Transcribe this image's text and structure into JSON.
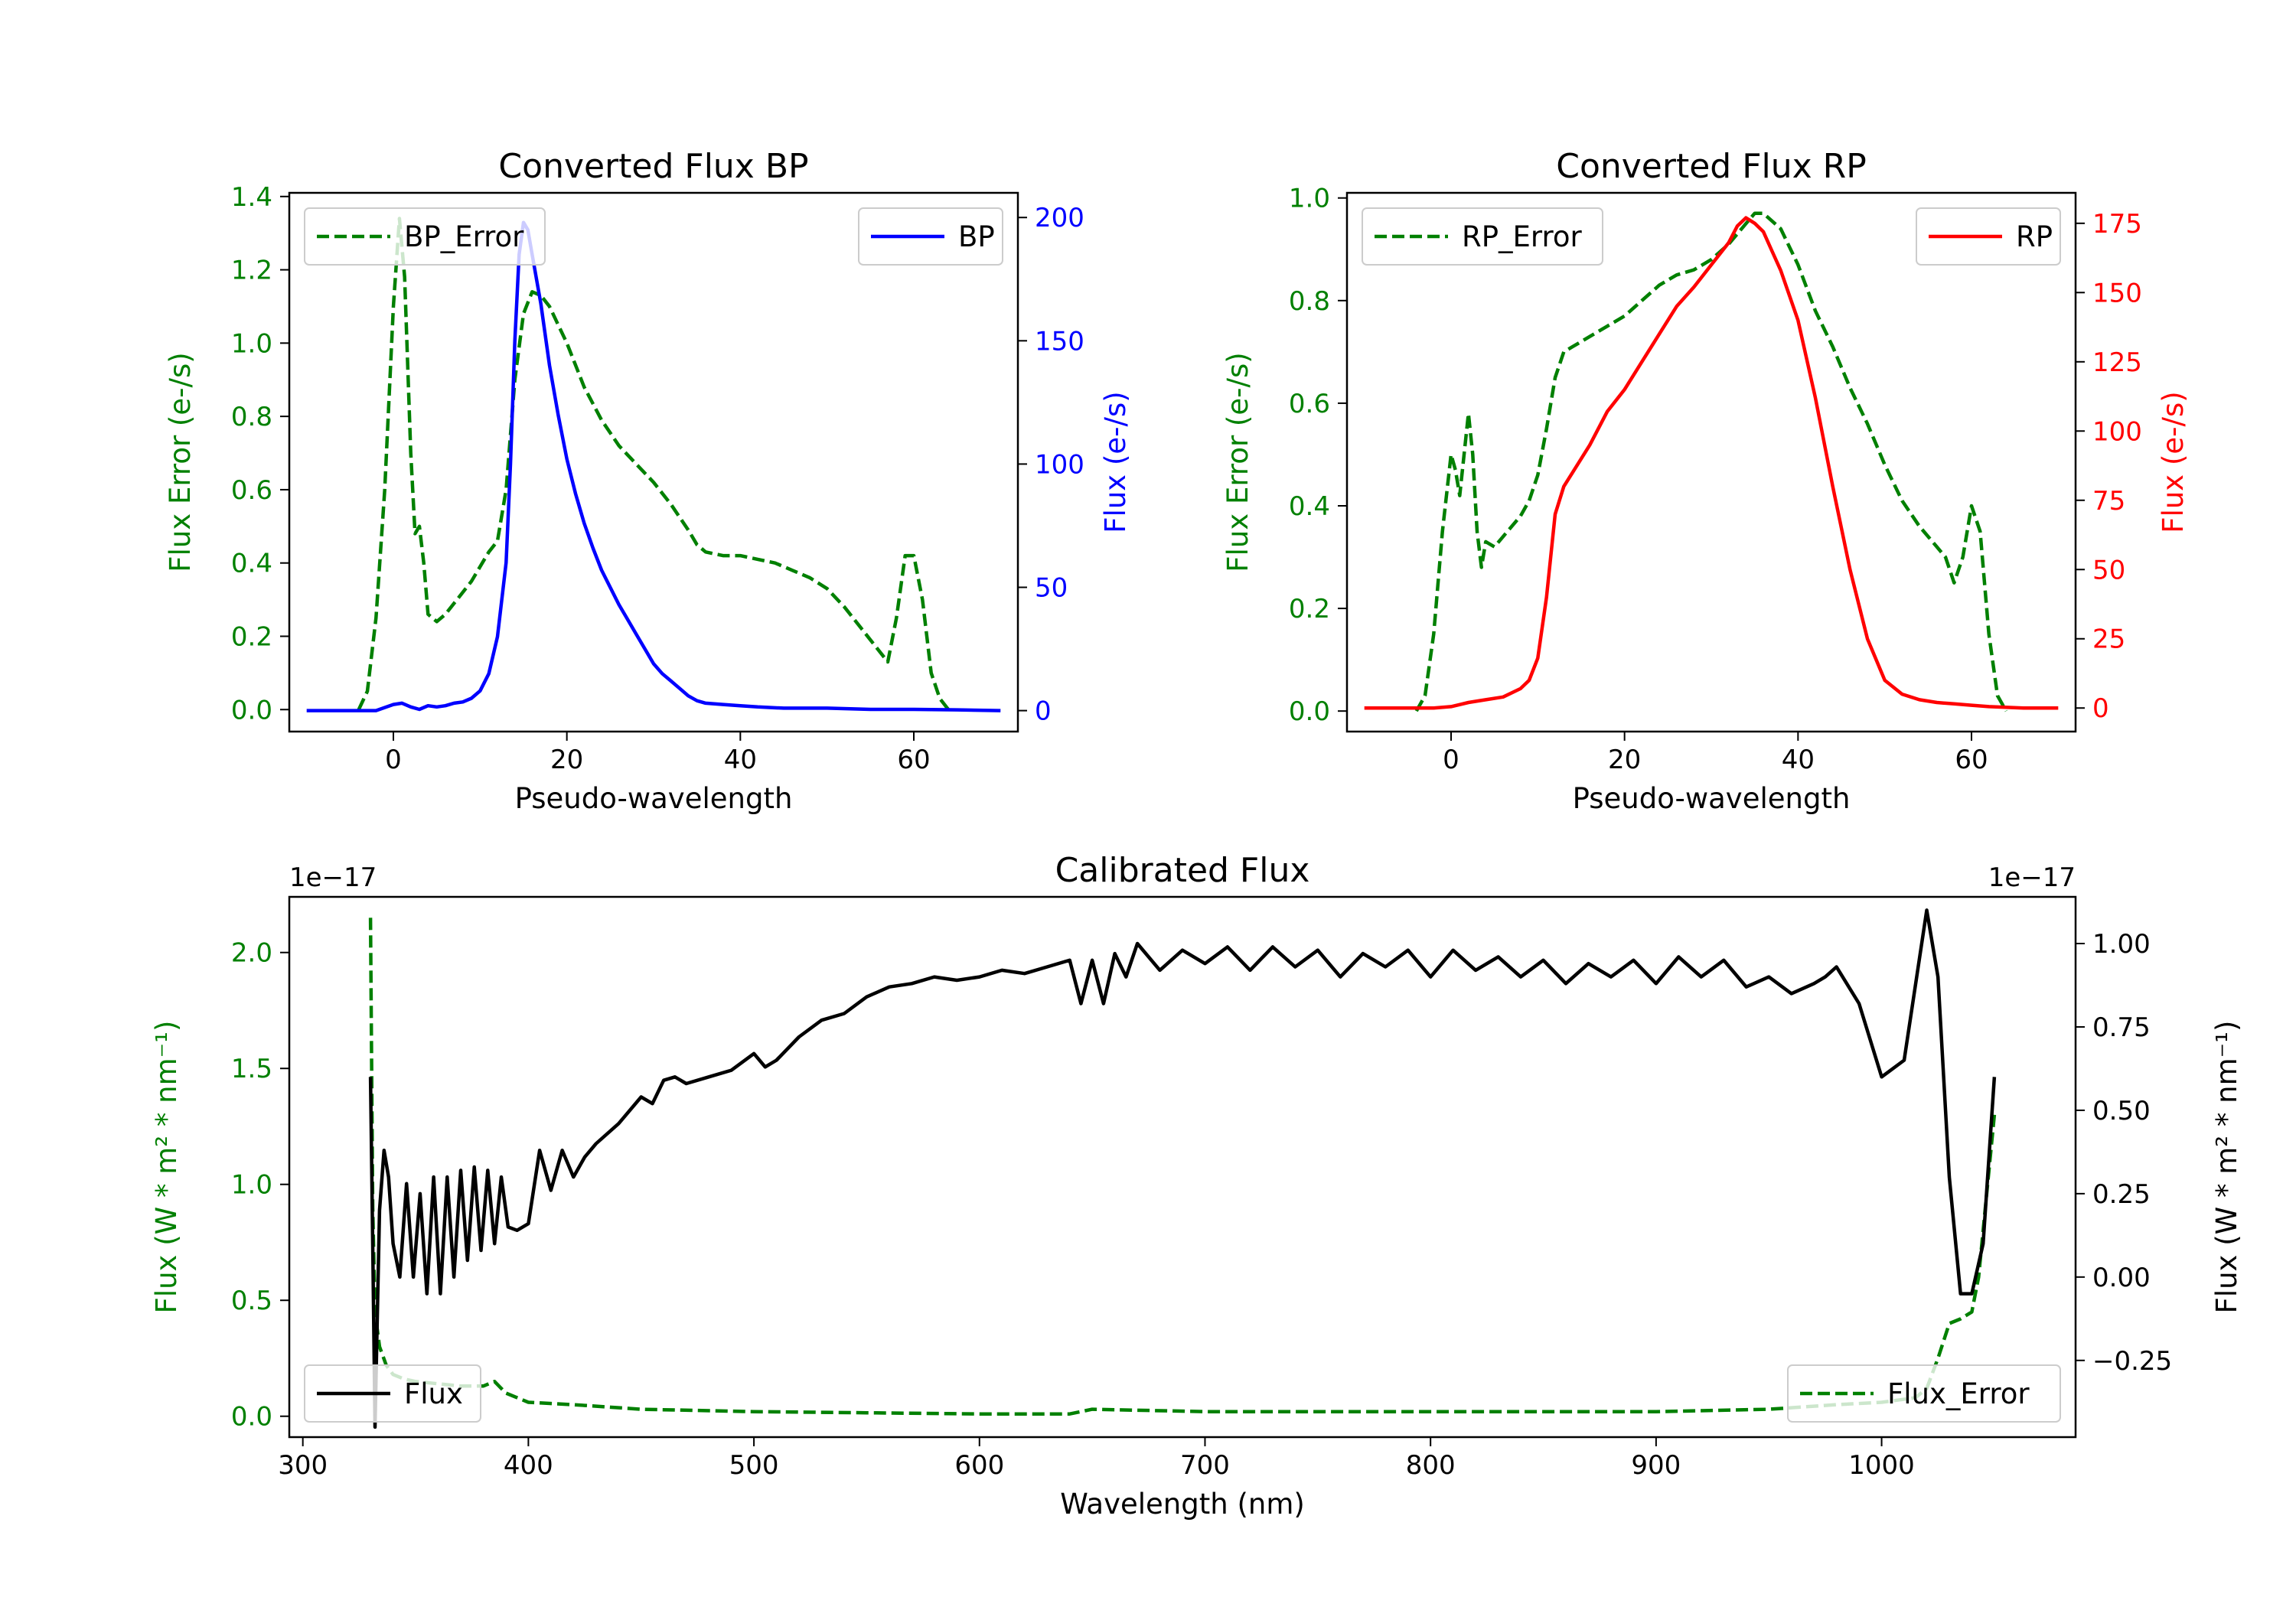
{
  "colors": {
    "green": "#008000",
    "blue": "#0000ff",
    "red": "#ff0000",
    "black": "#000000"
  },
  "chart_data": [
    {
      "type": "line",
      "id": "bp",
      "title": "Converted Flux BP",
      "xlabel": "Pseudo-wavelength",
      "ylabel_left": "Flux Error (e-/s)",
      "ylabel_right": "Flux (e-/s)",
      "xlim": [
        -12,
        72
      ],
      "ylim_left": [
        -0.06,
        1.41
      ],
      "ylim_right": [
        -8.5,
        210
      ],
      "xticks": [
        0,
        20,
        40,
        60
      ],
      "yticks_left": [
        0.0,
        0.2,
        0.4,
        0.6,
        0.8,
        1.0,
        1.2,
        1.4
      ],
      "yticks_right": [
        0,
        50,
        100,
        150,
        200
      ],
      "legend_left": "BP_Error",
      "legend_right": "BP",
      "series": [
        {
          "name": "BP_Error",
          "axis": "left",
          "color": "#008000",
          "dashed": true,
          "x": [
            -4,
            -3,
            -2,
            -1,
            0,
            0.7,
            1.3,
            2,
            2.5,
            3,
            3.5,
            4,
            5,
            6,
            7,
            8,
            9,
            10,
            11,
            12,
            13,
            14,
            15,
            16,
            17,
            18,
            19,
            20,
            21,
            22,
            24,
            26,
            28,
            30,
            32,
            34,
            35,
            36,
            38,
            40,
            42,
            44,
            46,
            48,
            50,
            52,
            54,
            56,
            57,
            58,
            59,
            60,
            61,
            62,
            63,
            64
          ],
          "values": [
            0.0,
            0.05,
            0.25,
            0.6,
            1.1,
            1.34,
            1.18,
            0.7,
            0.48,
            0.5,
            0.4,
            0.26,
            0.24,
            0.26,
            0.29,
            0.32,
            0.35,
            0.39,
            0.43,
            0.46,
            0.6,
            0.9,
            1.08,
            1.14,
            1.13,
            1.1,
            1.05,
            1.0,
            0.94,
            0.88,
            0.79,
            0.72,
            0.67,
            0.62,
            0.56,
            0.49,
            0.45,
            0.43,
            0.42,
            0.42,
            0.41,
            0.4,
            0.38,
            0.36,
            0.33,
            0.28,
            0.22,
            0.16,
            0.13,
            0.25,
            0.42,
            0.42,
            0.3,
            0.1,
            0.03,
            0.0
          ]
        },
        {
          "name": "BP",
          "axis": "right",
          "color": "#0000ff",
          "dashed": false,
          "x": [
            -10,
            -2,
            0,
            1,
            2,
            3,
            4,
            5,
            6,
            7,
            8,
            9,
            10,
            11,
            12,
            13,
            13.5,
            14,
            14.5,
            15,
            15.5,
            16,
            17,
            18,
            19,
            20,
            21,
            22,
            23,
            24,
            25,
            26,
            27,
            28,
            29,
            30,
            31,
            32,
            33,
            34,
            35,
            36,
            38,
            40,
            42,
            45,
            50,
            55,
            60,
            65,
            70
          ],
          "values": [
            0,
            0,
            2.5,
            3,
            1.5,
            0.5,
            2,
            1.5,
            2,
            3,
            3.5,
            5,
            8,
            15,
            30,
            60,
            100,
            150,
            185,
            198,
            195,
            185,
            165,
            140,
            120,
            102,
            88,
            76,
            66,
            57,
            50,
            43,
            37,
            31,
            25,
            19,
            15,
            12,
            9,
            6,
            4,
            3,
            2.5,
            2,
            1.5,
            1,
            1,
            0.5,
            0.5,
            0.3,
            0
          ]
        }
      ]
    },
    {
      "type": "line",
      "id": "rp",
      "title": "Converted Flux RP",
      "xlabel": "Pseudo-wavelength",
      "ylabel_left": "Flux Error (e-/s)",
      "ylabel_right": "Flux (e-/s)",
      "xlim": [
        -12,
        72
      ],
      "ylim_left": [
        -0.04,
        1.01
      ],
      "ylim_right": [
        -8.5,
        186
      ],
      "xticks": [
        0,
        20,
        40,
        60
      ],
      "yticks_left": [
        0.0,
        0.2,
        0.4,
        0.6,
        0.8,
        1.0
      ],
      "yticks_right": [
        0,
        25,
        50,
        75,
        100,
        125,
        150,
        175
      ],
      "legend_left": "RP_Error",
      "legend_right": "RP",
      "series": [
        {
          "name": "RP_Error",
          "axis": "left",
          "color": "#008000",
          "dashed": true,
          "x": [
            -4,
            -3,
            -2,
            -1,
            0,
            0.5,
            1,
            1.5,
            2,
            2.5,
            3,
            3.5,
            4,
            5,
            6,
            7,
            8,
            9,
            10,
            11,
            12,
            13,
            14,
            16,
            18,
            20,
            22,
            24,
            26,
            28,
            30,
            32,
            34,
            35,
            36,
            38,
            40,
            42,
            44,
            46,
            48,
            50,
            52,
            54,
            56,
            57,
            58,
            59,
            60,
            61,
            62,
            63,
            64
          ],
          "values": [
            0.0,
            0.03,
            0.15,
            0.35,
            0.5,
            0.47,
            0.42,
            0.5,
            0.58,
            0.5,
            0.35,
            0.28,
            0.33,
            0.32,
            0.34,
            0.36,
            0.38,
            0.41,
            0.46,
            0.55,
            0.65,
            0.7,
            0.71,
            0.73,
            0.75,
            0.77,
            0.8,
            0.83,
            0.85,
            0.86,
            0.88,
            0.91,
            0.95,
            0.97,
            0.97,
            0.94,
            0.87,
            0.78,
            0.71,
            0.63,
            0.56,
            0.48,
            0.41,
            0.36,
            0.32,
            0.3,
            0.25,
            0.3,
            0.4,
            0.35,
            0.15,
            0.03,
            0.0
          ]
        },
        {
          "name": "RP",
          "axis": "right",
          "color": "#ff0000",
          "dashed": false,
          "x": [
            -10,
            -2,
            0,
            2,
            4,
            6,
            8,
            9,
            10,
            11,
            12,
            13,
            14,
            16,
            18,
            20,
            22,
            24,
            26,
            28,
            30,
            32,
            33,
            34,
            35,
            36,
            37,
            38,
            40,
            42,
            44,
            46,
            48,
            50,
            52,
            54,
            56,
            58,
            60,
            62,
            66,
            70
          ],
          "values": [
            0,
            0,
            0.5,
            2,
            3,
            4,
            7,
            10,
            18,
            40,
            70,
            80,
            85,
            95,
            107,
            115,
            125,
            135,
            145,
            152,
            160,
            168,
            174,
            177,
            175,
            172,
            165,
            158,
            140,
            112,
            80,
            50,
            25,
            10,
            5,
            3,
            2,
            1.5,
            1,
            0.5,
            0,
            0
          ]
        }
      ]
    },
    {
      "type": "line",
      "id": "cal",
      "title": "Calibrated Flux",
      "xlabel": "Wavelength (nm)",
      "ylabel_left": "Flux (W * m² * nm⁻¹)",
      "ylabel_right": "Flux (W * m² * nm⁻¹)",
      "offset_left": "1e−17",
      "offset_right": "1e−17",
      "xlim": [
        294,
        1086
      ],
      "ylim_left": [
        -0.09,
        2.24
      ],
      "ylim_right": [
        -0.48,
        1.14
      ],
      "xticks": [
        300,
        400,
        500,
        600,
        700,
        800,
        900,
        1000
      ],
      "yticks_left": [
        0.0,
        0.5,
        1.0,
        1.5,
        2.0
      ],
      "yticks_left_labels": [
        "0.0",
        "0.5",
        "1.0",
        "1.5",
        "2.0"
      ],
      "yticks_right": [
        -0.25,
        0.0,
        0.25,
        0.5,
        0.75,
        1.0
      ],
      "yticks_right_labels": [
        "−0.25",
        "0.00",
        "0.25",
        "0.50",
        "0.75",
        "1.00"
      ],
      "legend_left": "Flux",
      "legend_right": "Flux_Error",
      "series": [
        {
          "name": "Flux_Error",
          "axis": "left",
          "color": "#008000",
          "dashed": true,
          "x": [
            330,
            331,
            332,
            334,
            337,
            340,
            345,
            350,
            360,
            370,
            380,
            385,
            390,
            400,
            420,
            450,
            500,
            550,
            600,
            640,
            650,
            700,
            750,
            800,
            850,
            900,
            950,
            980,
            1000,
            1015,
            1020,
            1025,
            1030,
            1035,
            1040,
            1043,
            1046,
            1050
          ],
          "values": [
            2.15,
            0.9,
            0.45,
            0.3,
            0.22,
            0.18,
            0.16,
            0.15,
            0.14,
            0.13,
            0.13,
            0.15,
            0.1,
            0.06,
            0.05,
            0.03,
            0.02,
            0.015,
            0.01,
            0.01,
            0.03,
            0.02,
            0.02,
            0.02,
            0.02,
            0.02,
            0.03,
            0.05,
            0.06,
            0.08,
            0.12,
            0.25,
            0.4,
            0.42,
            0.45,
            0.6,
            0.9,
            1.3
          ]
        },
        {
          "name": "Flux",
          "axis": "right",
          "color": "#000000",
          "dashed": false,
          "x": [
            330,
            331,
            332,
            334,
            336,
            338,
            340,
            343,
            346,
            349,
            352,
            355,
            358,
            361,
            364,
            367,
            370,
            373,
            376,
            379,
            382,
            385,
            388,
            391,
            395,
            400,
            405,
            410,
            415,
            420,
            425,
            430,
            440,
            450,
            455,
            460,
            465,
            470,
            480,
            490,
            500,
            505,
            510,
            520,
            530,
            540,
            550,
            560,
            570,
            580,
            590,
            600,
            610,
            620,
            630,
            640,
            645,
            650,
            655,
            660,
            665,
            670,
            680,
            690,
            700,
            710,
            720,
            730,
            740,
            750,
            760,
            770,
            780,
            790,
            800,
            810,
            820,
            830,
            840,
            850,
            860,
            870,
            880,
            890,
            900,
            910,
            920,
            930,
            940,
            950,
            960,
            970,
            975,
            980,
            990,
            1000,
            1010,
            1020,
            1025,
            1030,
            1035,
            1040,
            1045,
            1050
          ],
          "values": [
            0.6,
            0.1,
            -0.45,
            0.2,
            0.38,
            0.3,
            0.1,
            0.0,
            0.28,
            0.0,
            0.25,
            -0.05,
            0.3,
            -0.05,
            0.3,
            0.0,
            0.32,
            0.05,
            0.33,
            0.08,
            0.32,
            0.1,
            0.3,
            0.15,
            0.14,
            0.16,
            0.38,
            0.26,
            0.38,
            0.3,
            0.36,
            0.4,
            0.46,
            0.54,
            0.52,
            0.59,
            0.6,
            0.58,
            0.6,
            0.62,
            0.67,
            0.63,
            0.65,
            0.72,
            0.77,
            0.79,
            0.84,
            0.87,
            0.88,
            0.9,
            0.89,
            0.9,
            0.92,
            0.91,
            0.93,
            0.95,
            0.82,
            0.95,
            0.82,
            0.97,
            0.9,
            1.0,
            0.92,
            0.98,
            0.94,
            0.99,
            0.92,
            0.99,
            0.93,
            0.98,
            0.9,
            0.97,
            0.93,
            0.98,
            0.9,
            0.98,
            0.92,
            0.96,
            0.9,
            0.95,
            0.88,
            0.94,
            0.9,
            0.95,
            0.88,
            0.96,
            0.9,
            0.95,
            0.87,
            0.9,
            0.85,
            0.88,
            0.9,
            0.93,
            0.82,
            0.6,
            0.65,
            1.1,
            0.9,
            0.3,
            -0.05,
            -0.05,
            0.1,
            0.6
          ]
        }
      ]
    }
  ]
}
